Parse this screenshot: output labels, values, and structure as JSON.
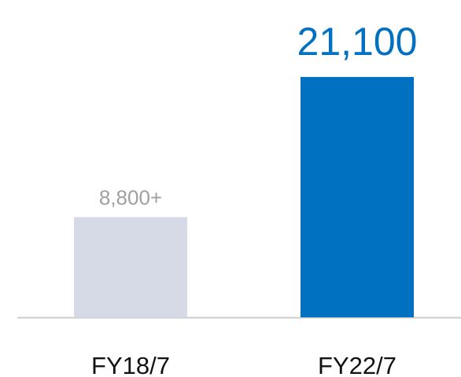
{
  "chart_data": {
    "type": "bar",
    "categories": [
      "FY18/7",
      "FY22/7"
    ],
    "values": [
      8800,
      21100
    ],
    "value_labels": [
      "8,800+",
      "21,100"
    ],
    "colors": [
      "#d5dae6",
      "#0070c0"
    ],
    "label_colors": [
      "#a0a0a0",
      "#0070c0"
    ]
  }
}
